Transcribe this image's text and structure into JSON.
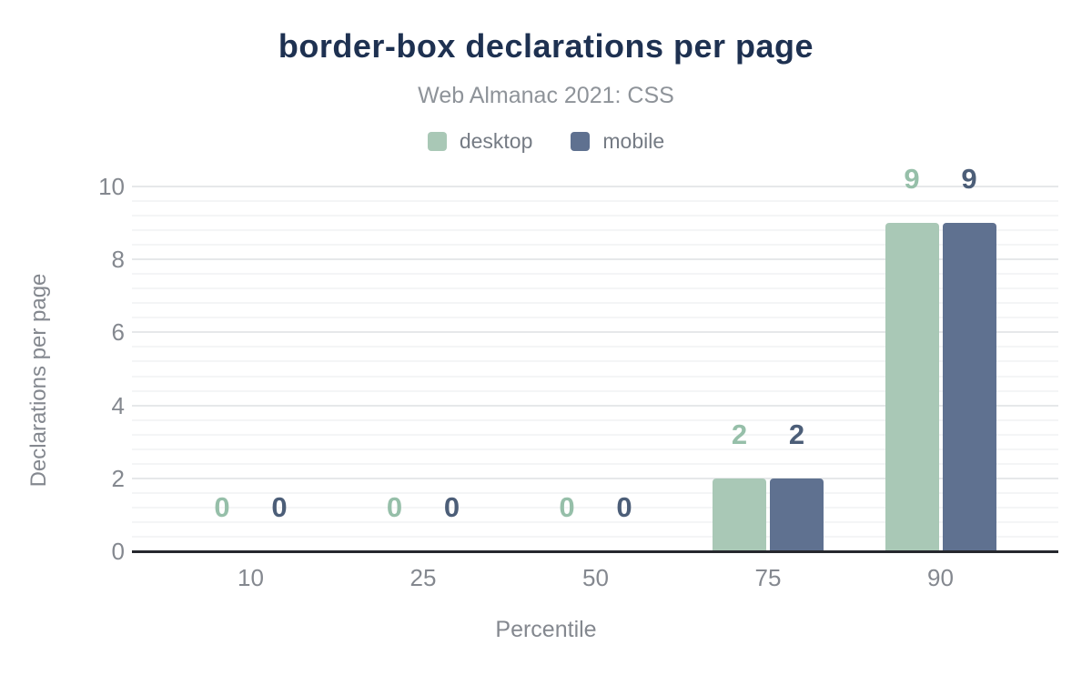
{
  "chart_data": {
    "type": "bar",
    "title": "border-box declarations per page",
    "subtitle": "Web Almanac 2021: CSS",
    "xlabel": "Percentile",
    "ylabel": "Declarations per page",
    "categories": [
      "10",
      "25",
      "50",
      "75",
      "90"
    ],
    "series": [
      {
        "name": "desktop",
        "color": "#a9c8b6",
        "label_color": "#96bfa9",
        "values": [
          0,
          0,
          0,
          2,
          9
        ]
      },
      {
        "name": "mobile",
        "color": "#5f7190",
        "label_color": "#4c5e78",
        "values": [
          0,
          0,
          0,
          2,
          9
        ]
      }
    ],
    "ylim": [
      0,
      10
    ],
    "yticks": [
      0,
      2,
      4,
      6,
      8,
      10
    ],
    "grid": "major and minor horizontal gridlines",
    "legend_position": "top",
    "data_labels": "shown above bars in series color"
  },
  "colors": {
    "title": "#1e3151",
    "subtitle": "#8e9399",
    "legend_text": "#757b84",
    "axis_text": "#84888f",
    "grid_major": "#e6e8ea",
    "grid_minor": "#f4f5f6",
    "baseline": "#26282e",
    "background": "#ffffff"
  }
}
